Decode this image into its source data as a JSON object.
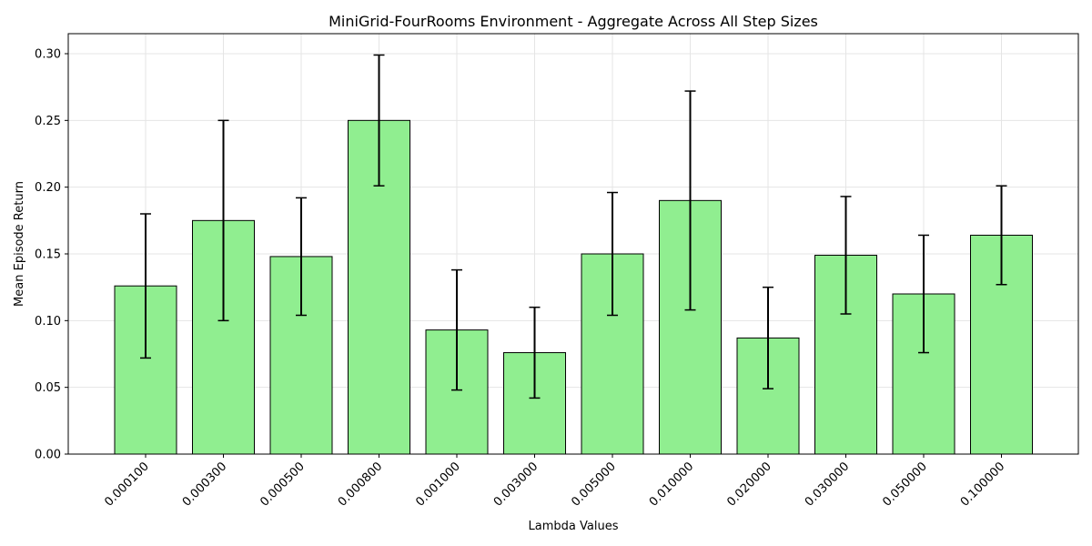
{
  "chart_data": {
    "type": "bar",
    "title": "MiniGrid-FourRooms Environment - Aggregate Across All Step Sizes",
    "xlabel": "Lambda Values",
    "ylabel": "Mean Episode Return",
    "categories": [
      "0.000100",
      "0.000300",
      "0.000500",
      "0.000800",
      "0.001000",
      "0.003000",
      "0.005000",
      "0.010000",
      "0.020000",
      "0.030000",
      "0.050000",
      "0.100000"
    ],
    "values": [
      0.126,
      0.175,
      0.148,
      0.25,
      0.093,
      0.076,
      0.15,
      0.19,
      0.087,
      0.149,
      0.12,
      0.164
    ],
    "errors": [
      0.054,
      0.075,
      0.044,
      0.049,
      0.045,
      0.034,
      0.046,
      0.082,
      0.038,
      0.044,
      0.044,
      0.037
    ],
    "ylim": [
      0,
      0.315
    ],
    "yticks": [
      "0.00",
      "0.05",
      "0.10",
      "0.15",
      "0.20",
      "0.25",
      "0.30"
    ],
    "ytick_values": [
      0,
      0.05,
      0.1,
      0.15,
      0.2,
      0.25,
      0.3
    ],
    "grid": true,
    "colors": {
      "bar": "#90ee90",
      "edge": "#000000",
      "error": "#000000",
      "grid": "#e5e5e5"
    }
  }
}
